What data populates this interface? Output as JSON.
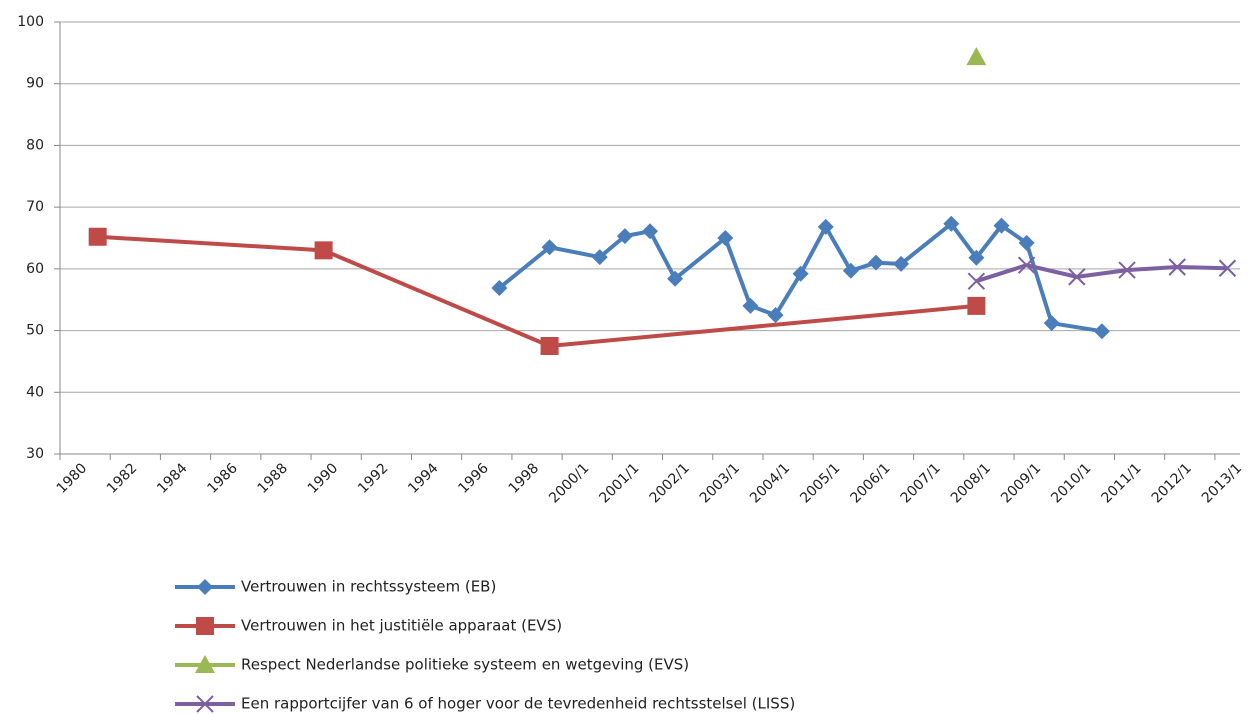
{
  "chart_data": {
    "type": "line",
    "categories": [
      "1980",
      null,
      "1982",
      null,
      "1984",
      null,
      "1986",
      null,
      "1988",
      null,
      "1990",
      null,
      "1992",
      null,
      "1994",
      null,
      "1996",
      null,
      "1998",
      null,
      "2000/1",
      null,
      "2001/1",
      null,
      "2002/1",
      null,
      "2003/1",
      null,
      "2004/1",
      null,
      "2005/1",
      null,
      "2006/1",
      null,
      "2007/1",
      null,
      "2008/1",
      null,
      "2009/1",
      null,
      "2010/1",
      null,
      "2011/1",
      null,
      "2012/1",
      null,
      "2013/1"
    ],
    "series": [
      {
        "name": "Vertrouwen in rechtssysteem (EB)",
        "color": "#4a7ebb",
        "marker": "diamond",
        "values": [
          null,
          null,
          null,
          null,
          null,
          null,
          null,
          null,
          null,
          null,
          null,
          null,
          null,
          null,
          null,
          null,
          null,
          56.9,
          null,
          63.5,
          null,
          61.9,
          65.3,
          66.1,
          58.4,
          null,
          65,
          54,
          52.5,
          59.2,
          66.8,
          59.7,
          61,
          60.8,
          null,
          67.3,
          61.8,
          67,
          64.2,
          51.2,
          null,
          49.9,
          null,
          null,
          null,
          null,
          null
        ]
      },
      {
        "name": "Vertrouwen in het justitiële apparaat (EVS)",
        "color": "#be4b48",
        "marker": "square",
        "values": [
          null,
          65.2,
          null,
          null,
          null,
          null,
          null,
          null,
          null,
          null,
          63,
          null,
          null,
          null,
          null,
          null,
          null,
          null,
          null,
          47.5,
          null,
          null,
          null,
          null,
          null,
          null,
          null,
          null,
          null,
          null,
          null,
          null,
          null,
          null,
          null,
          null,
          54,
          null,
          null,
          null,
          null,
          null,
          null,
          null,
          null,
          null,
          null
        ]
      },
      {
        "name": "Respect Nederlandse politieke systeem en wetgeving (EVS)",
        "color": "#98b954",
        "marker": "triangle",
        "values": [
          null,
          null,
          null,
          null,
          null,
          null,
          null,
          null,
          null,
          null,
          null,
          null,
          null,
          null,
          null,
          null,
          null,
          null,
          null,
          null,
          null,
          null,
          null,
          null,
          null,
          null,
          null,
          null,
          null,
          null,
          null,
          null,
          null,
          null,
          null,
          null,
          94.3,
          null,
          null,
          null,
          null,
          null,
          null,
          null,
          null,
          null,
          null
        ]
      },
      {
        "name": "Een rapportcijfer van 6 of hoger voor de tevredenheid rechtsstelsel (LISS)",
        "color": "#7d60a0",
        "marker": "x",
        "values": [
          null,
          null,
          null,
          null,
          null,
          null,
          null,
          null,
          null,
          null,
          null,
          null,
          null,
          null,
          null,
          null,
          null,
          null,
          null,
          null,
          null,
          null,
          null,
          null,
          null,
          null,
          null,
          null,
          null,
          null,
          null,
          null,
          null,
          null,
          null,
          null,
          58,
          null,
          60.6,
          null,
          58.7,
          null,
          59.8,
          null,
          60.3,
          null,
          60.1
        ]
      }
    ],
    "ylim": [
      30,
      100
    ],
    "yticks": [
      30,
      40,
      50,
      60,
      70,
      80,
      90,
      100
    ],
    "grid": true,
    "connect_gaps": true,
    "legend": "bottom"
  }
}
